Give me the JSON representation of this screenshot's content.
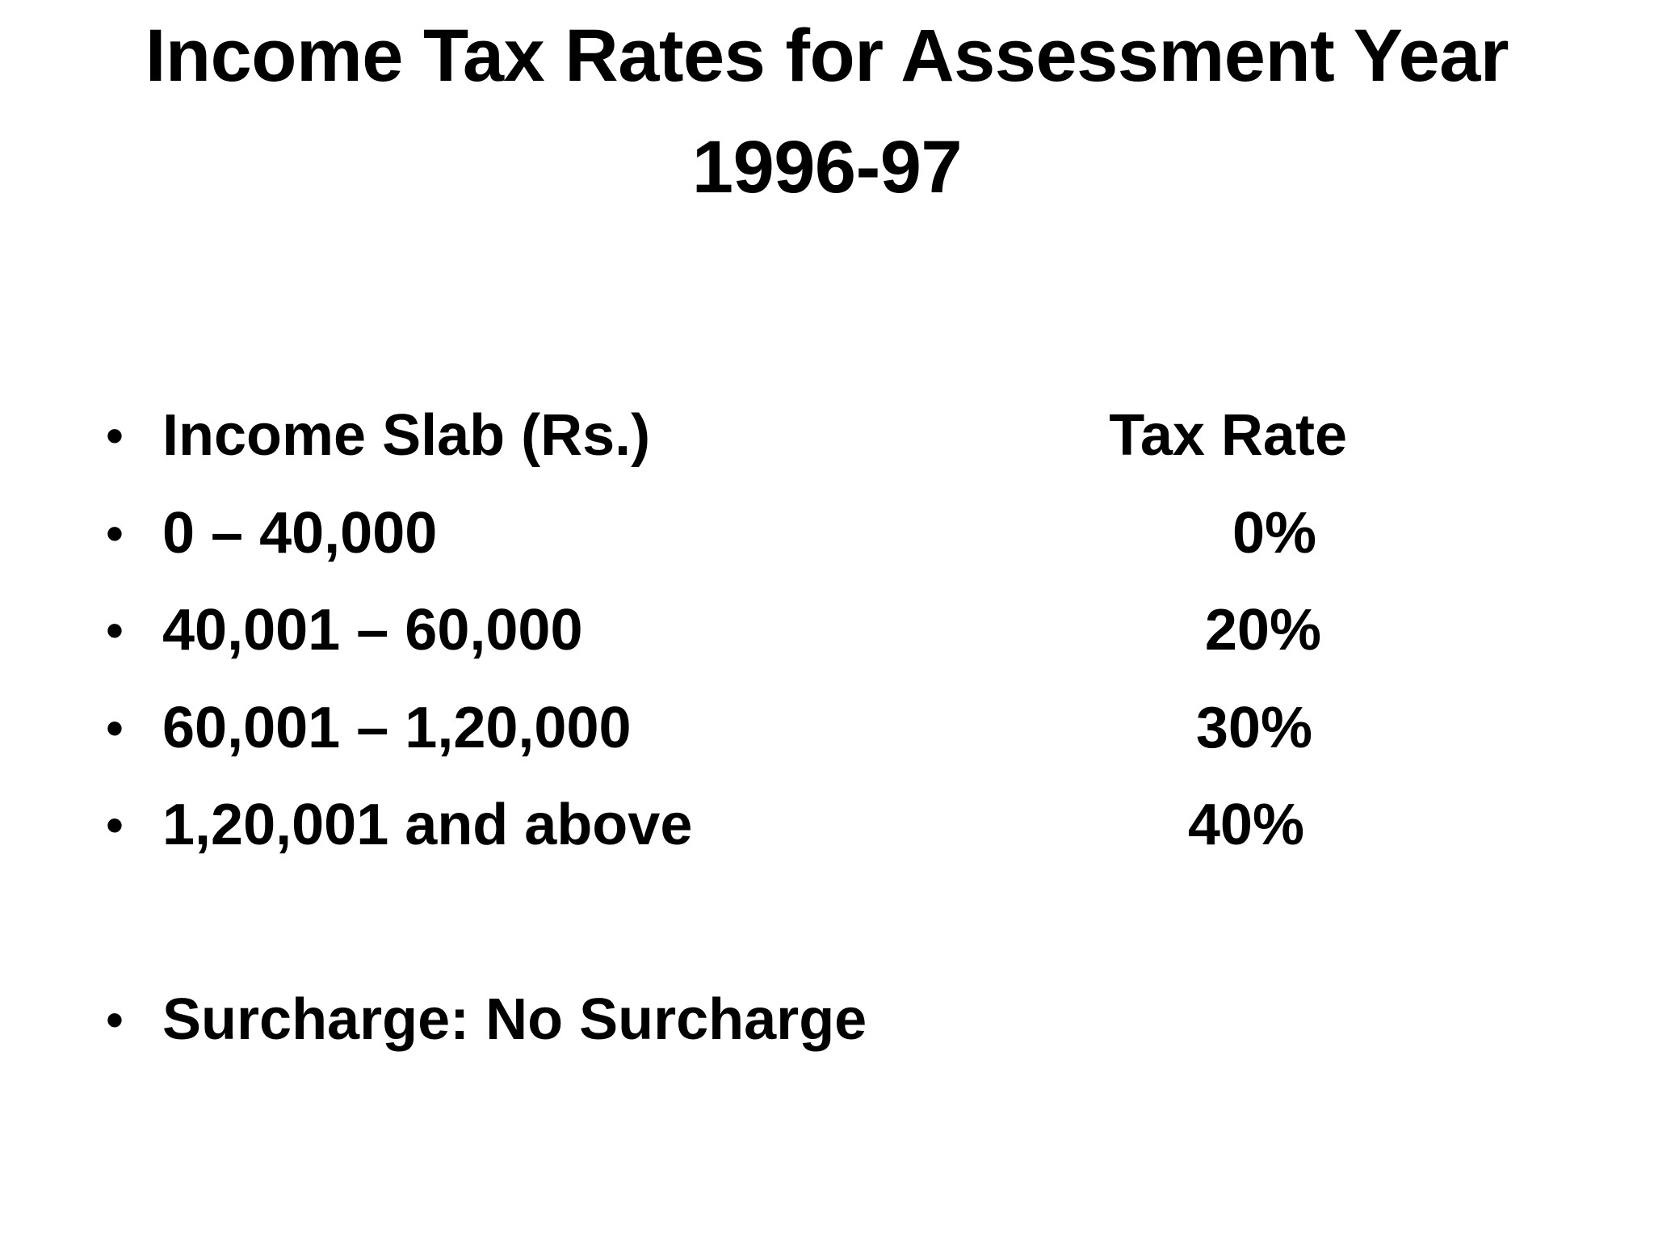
{
  "slide": {
    "title": "Income Tax Rates for Assessment Year 1996-97",
    "bullet_glyph": "•",
    "table": {
      "header": {
        "slab": "Income Slab (Rs.)",
        "rate": "Tax Rate"
      },
      "rows": [
        {
          "slab": "0 – 40,000",
          "rate": "0%"
        },
        {
          "slab": "40,001 – 60,000",
          "rate": "20%"
        },
        {
          "slab": "60,001 – 1,20,000",
          "rate": "30%"
        },
        {
          "slab": "1,20,001 and above",
          "rate": "40%"
        }
      ]
    },
    "surcharge": "Surcharge: No Surcharge"
  }
}
